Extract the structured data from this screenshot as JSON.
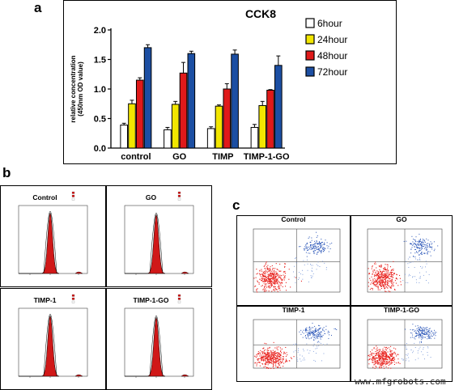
{
  "panel_a": {
    "letter": "a",
    "chart_data": {
      "type": "bar",
      "title": "CCK8",
      "ylabel": "relative concentration (450nm OD value)",
      "ylabel_lines": [
        "relative concentration",
        "(450nm OD value)"
      ],
      "xlabel": "",
      "ylim": [
        0,
        2.0
      ],
      "yticks": [
        "0.0",
        "0.5",
        "1.0",
        "1.5",
        "2.0"
      ],
      "categories": [
        "control",
        "GO",
        "TIMP",
        "TIMP-1-GO"
      ],
      "series": [
        {
          "name": "6hour",
          "color": "#ffffff",
          "values": [
            0.39,
            0.31,
            0.33,
            0.35
          ],
          "errors": [
            0.03,
            0.04,
            0.03,
            0.05
          ]
        },
        {
          "name": "24hour",
          "color": "#f2e600",
          "values": [
            0.75,
            0.74,
            0.71,
            0.72
          ],
          "errors": [
            0.06,
            0.05,
            0.02,
            0.07
          ]
        },
        {
          "name": "48hour",
          "color": "#e01a1a",
          "values": [
            1.15,
            1.27,
            1.0,
            0.98
          ],
          "errors": [
            0.04,
            0.18,
            0.09,
            0.01
          ]
        },
        {
          "name": "72hour",
          "color": "#1c4fa3",
          "values": [
            1.7,
            1.6,
            1.59,
            1.4
          ],
          "errors": [
            0.05,
            0.04,
            0.07,
            0.16
          ]
        }
      ],
      "legend_position": "right"
    }
  },
  "panel_b": {
    "letter": "b",
    "plots": [
      {
        "title": "Control"
      },
      {
        "title": "GO"
      },
      {
        "title": "TIMP-1"
      },
      {
        "title": "TIMP-1-GO"
      }
    ]
  },
  "panel_c": {
    "letter": "c",
    "plots": [
      {
        "title": "Control"
      },
      {
        "title": "GO"
      },
      {
        "title": "TIMP-1"
      },
      {
        "title": "TIMP-1-GO"
      }
    ]
  },
  "watermark": "www.mfgrobots.com"
}
